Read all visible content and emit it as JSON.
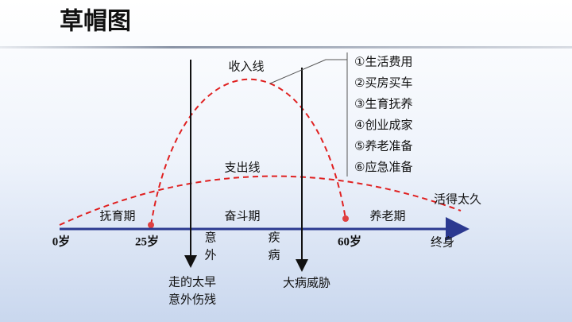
{
  "title": "草帽图",
  "curves": {
    "income": "收入线",
    "expense": "支出线"
  },
  "axis": {
    "start": "0岁",
    "age_25": "25岁",
    "age_60": "60岁",
    "end": "终身"
  },
  "phases": [
    "抚育期",
    "奋斗期",
    "养老期"
  ],
  "risks": {
    "accident": {
      "axis_label": [
        "意",
        "外"
      ],
      "caption": [
        "走的太早",
        "意外伤残"
      ]
    },
    "illness": {
      "axis_label": [
        "疾",
        "病"
      ],
      "caption": [
        "大病威胁"
      ]
    },
    "longevity": {
      "caption": [
        "活得太久"
      ]
    }
  },
  "needs": [
    "①生活费用",
    "②买房买车",
    "③生育抚养",
    "④创业成家",
    "⑤养老准备",
    "⑥应急准备"
  ]
}
